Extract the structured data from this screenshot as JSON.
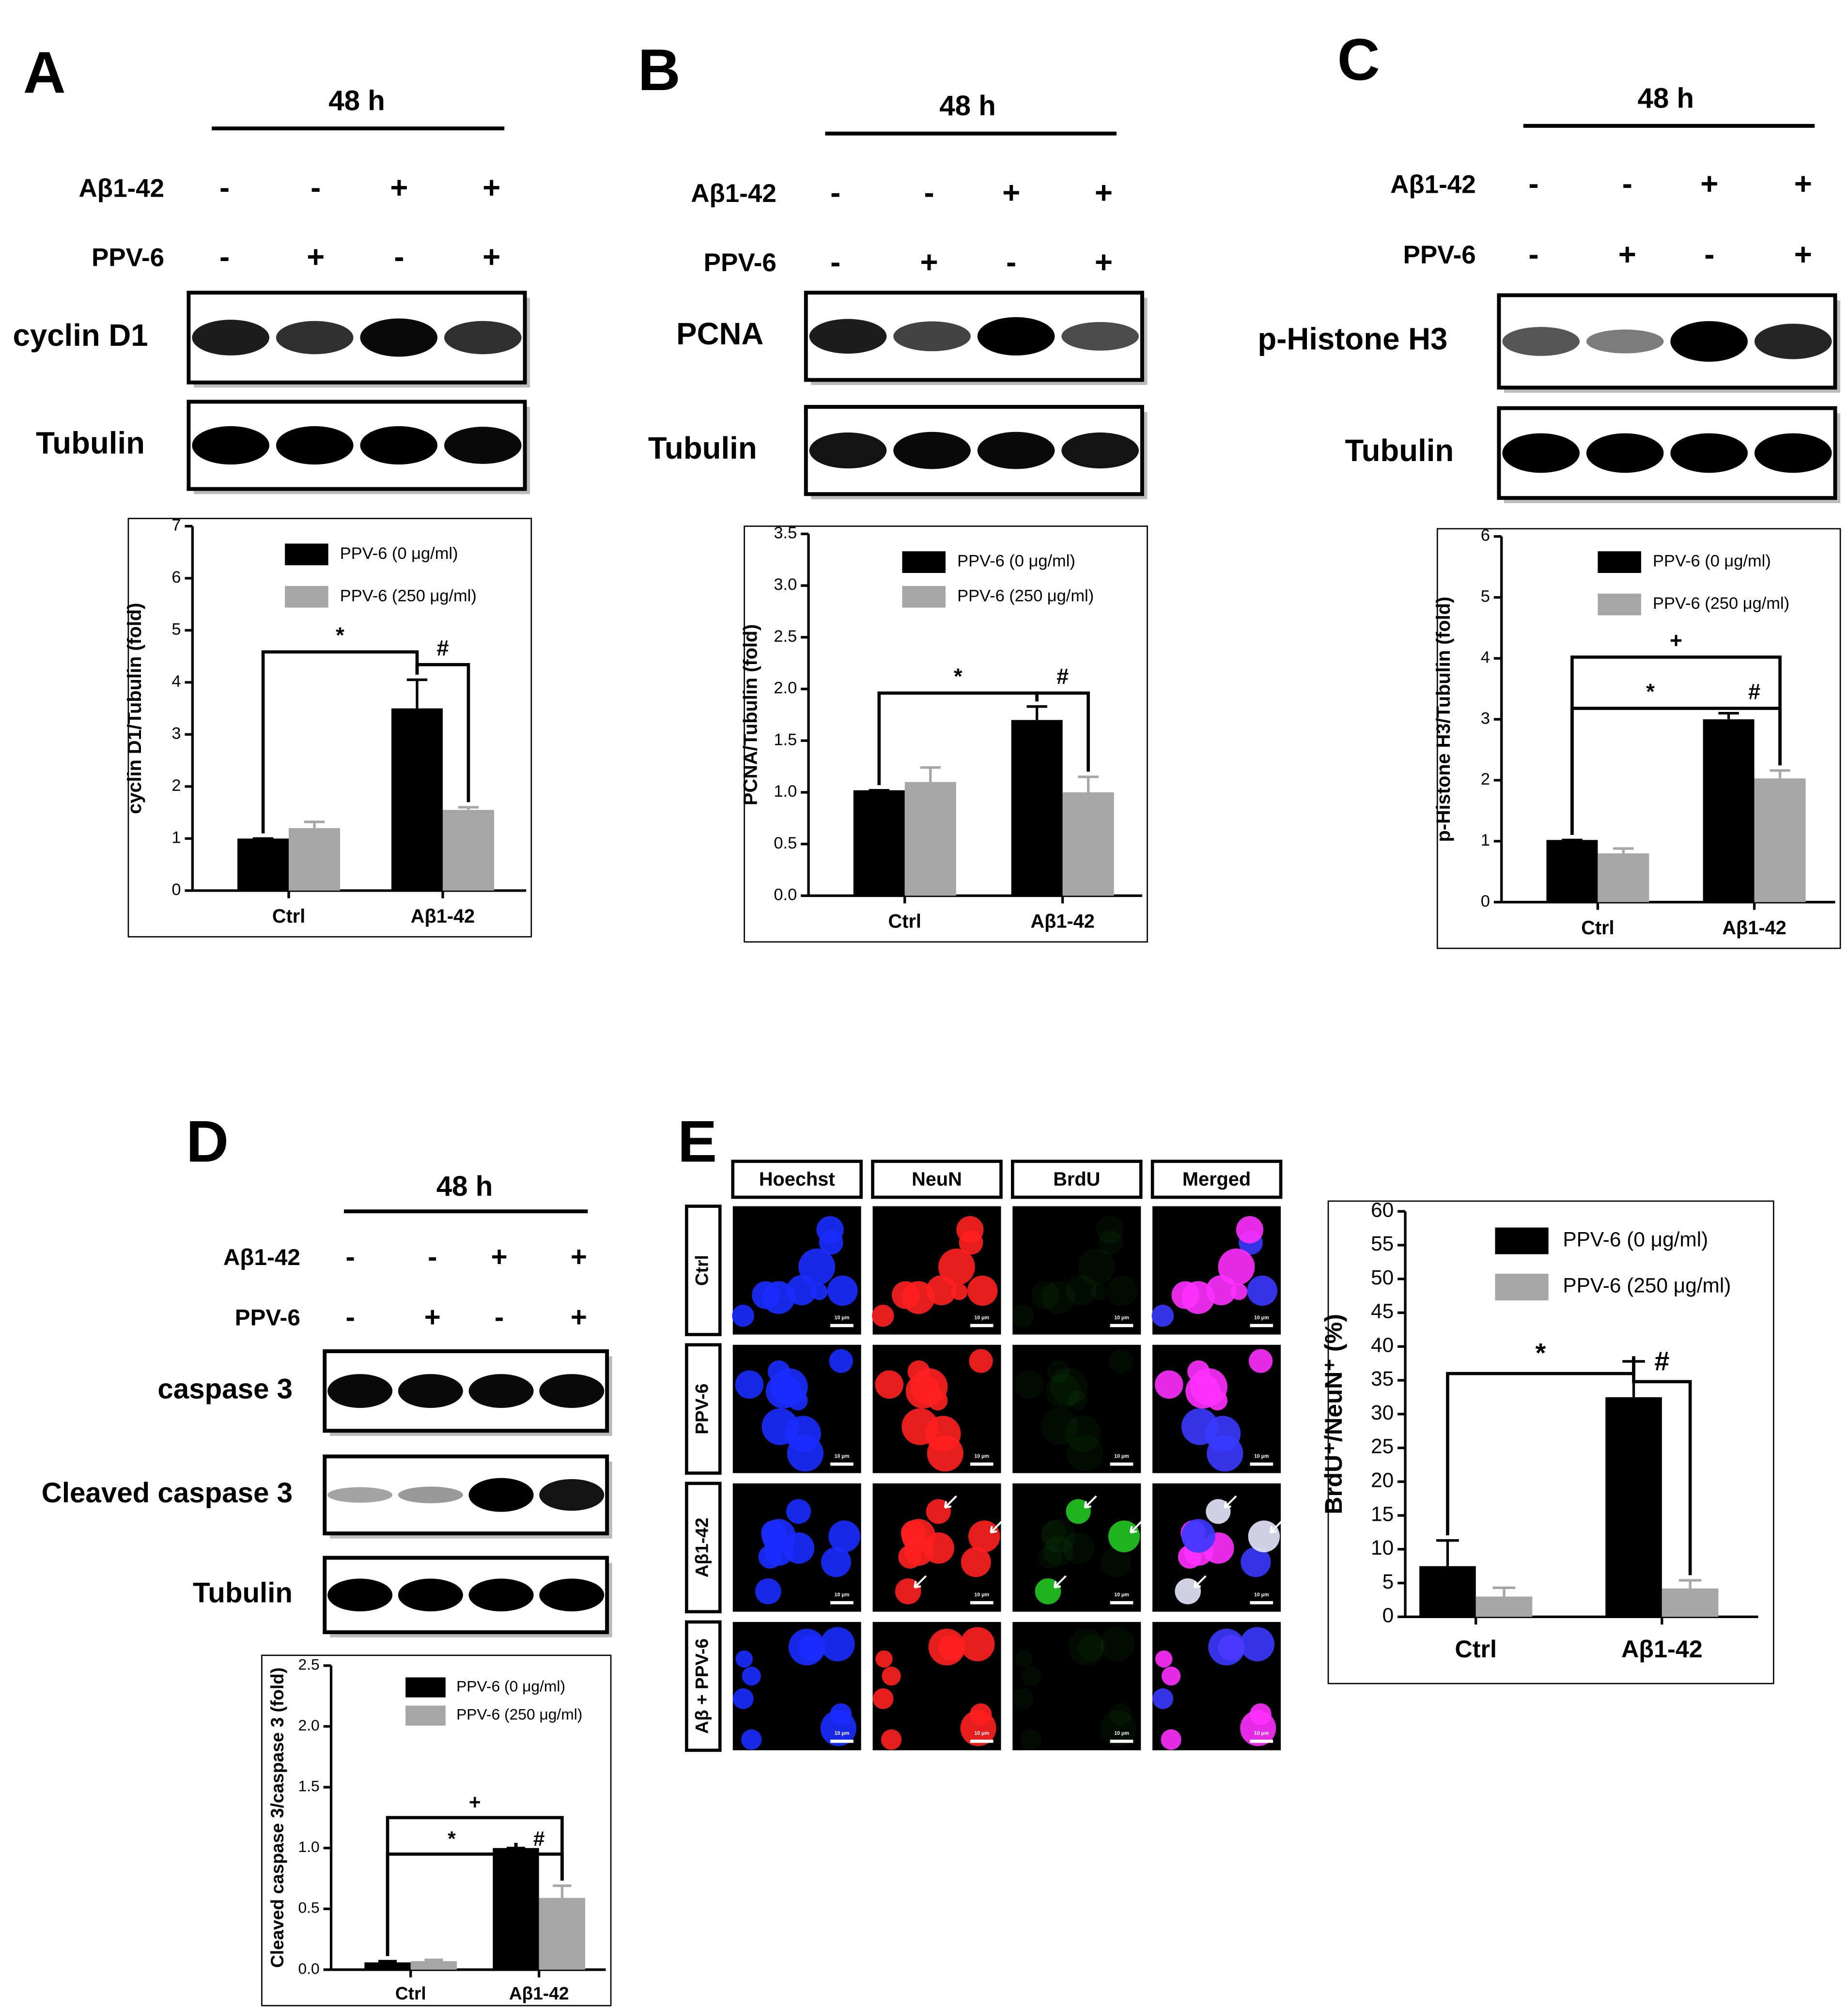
{
  "figure": {
    "panel_letters": [
      "A",
      "B",
      "C",
      "D",
      "E"
    ]
  },
  "blots": [
    {
      "time": "48 h",
      "treatments": [
        {
          "name": "Aβ1-42",
          "signs": [
            "-",
            "-",
            "+",
            "+"
          ]
        },
        {
          "name": "PPV-6",
          "signs": [
            "-",
            "+",
            "-",
            "+"
          ]
        }
      ],
      "bands": [
        "cyclin D1",
        "Tubulin"
      ]
    },
    {
      "time": "48 h",
      "treatments": [
        {
          "name": "Aβ1-42",
          "signs": [
            "-",
            "-",
            "+",
            "+"
          ]
        },
        {
          "name": "PPV-6",
          "signs": [
            "-",
            "+",
            "-",
            "+"
          ]
        }
      ],
      "bands": [
        "PCNA",
        "Tubulin"
      ]
    },
    {
      "time": "48 h",
      "treatments": [
        {
          "name": "Aβ1-42",
          "signs": [
            "-",
            "-",
            "+",
            "+"
          ]
        },
        {
          "name": "PPV-6",
          "signs": [
            "-",
            "+",
            "-",
            "+"
          ]
        }
      ],
      "bands": [
        "p-Histone H3",
        "Tubulin"
      ]
    },
    {
      "time": "48 h",
      "treatments": [
        {
          "name": "Aβ1-42",
          "signs": [
            "-",
            "-",
            "+",
            "+"
          ]
        },
        {
          "name": "PPV-6",
          "signs": [
            "-",
            "+",
            "-",
            "+"
          ]
        }
      ],
      "bands": [
        "caspase 3",
        "Cleaved caspase 3",
        "Tubulin"
      ]
    }
  ],
  "imaging": {
    "columns": [
      "Hoechst",
      "NeuN",
      "BrdU",
      "Merged"
    ],
    "rows": [
      "Ctrl",
      "PPV-6",
      "Aβ1-42",
      "Aβ + PPV-6"
    ],
    "scale_bar": "10 μm"
  },
  "chart_data": [
    {
      "type": "bar",
      "y_label": "cyclin D1/Tubulin (fold)",
      "categories": [
        "Ctrl",
        "Aβ1-42"
      ],
      "series": [
        {
          "name": "PPV-6 (0 μg/ml)",
          "color": "#000000",
          "values": [
            1.0,
            3.5
          ],
          "errors": [
            0,
            0.55
          ]
        },
        {
          "name": "PPV-6 (250 μg/ml)",
          "color": "#a6a6a6",
          "values": [
            1.2,
            1.55
          ],
          "errors": [
            0.12,
            0.05
          ]
        }
      ],
      "ylim": [
        0,
        7
      ],
      "yticks": [
        0,
        1,
        2,
        3,
        4,
        5,
        6,
        7
      ],
      "annotations": [
        "*",
        "#"
      ]
    },
    {
      "type": "bar",
      "y_label": "PCNA/Tubulin (fold)",
      "categories": [
        "Ctrl",
        "Aβ1-42"
      ],
      "series": [
        {
          "name": "PPV-6 (0 μg/ml)",
          "color": "#000000",
          "values": [
            1.02,
            1.7
          ],
          "errors": [
            0,
            0.13
          ]
        },
        {
          "name": "PPV-6 (250 μg/ml)",
          "color": "#a6a6a6",
          "values": [
            1.1,
            1.0
          ],
          "errors": [
            0.14,
            0.15
          ]
        }
      ],
      "ylim": [
        0,
        3.5
      ],
      "yticks": [
        {
          "value": 0,
          "label": "0.0"
        },
        0.5,
        {
          "value": 1,
          "label": "1.0"
        },
        1.5,
        {
          "value": 2,
          "label": "2.0"
        },
        2.5,
        {
          "value": 3,
          "label": "3.0"
        },
        3.5
      ],
      "annotations": [
        "*",
        "#"
      ]
    },
    {
      "type": "bar",
      "y_label": "p-Histone H3/Tubulin (fold)",
      "categories": [
        "Ctrl",
        "Aβ1-42"
      ],
      "series": [
        {
          "name": "PPV-6 (0 μg/ml)",
          "color": "#000000",
          "values": [
            1.02,
            3.0
          ],
          "errors": [
            0,
            0.1
          ]
        },
        {
          "name": "PPV-6 (250 μg/ml)",
          "color": "#a6a6a6",
          "values": [
            0.8,
            2.03
          ],
          "errors": [
            0.08,
            0.13
          ]
        }
      ],
      "ylim": [
        0,
        6
      ],
      "yticks": [
        0,
        1,
        2,
        3,
        4,
        5,
        6
      ],
      "annotations": [
        "+",
        "*",
        "#"
      ]
    },
    {
      "type": "bar",
      "y_label": "Cleaved caspase 3/caspase 3 (fold)",
      "categories": [
        "Ctrl",
        "Aβ1-42"
      ],
      "series": [
        {
          "name": "PPV-6 (0 μg/ml)",
          "color": "#000000",
          "values": [
            0.06,
            1.0
          ],
          "errors": [
            0.01,
            0
          ]
        },
        {
          "name": "PPV-6 (250 μg/ml)",
          "color": "#a6a6a6",
          "values": [
            0.07,
            0.59
          ],
          "errors": [
            0.01,
            0.1
          ]
        }
      ],
      "ylim": [
        0,
        2.5
      ],
      "yticks": [
        {
          "value": 0,
          "label": "0.0"
        },
        0.5,
        {
          "value": 1,
          "label": "1.0"
        },
        1.5,
        {
          "value": 2,
          "label": "2.0"
        },
        2.5
      ],
      "annotations": [
        "+",
        "*",
        "#"
      ]
    },
    {
      "type": "bar",
      "y_label": "BrdU⁺/NeuN⁺ (%)",
      "categories": [
        "Ctrl",
        "Aβ1-42"
      ],
      "series": [
        {
          "name": "PPV-6 (0 μg/ml)",
          "color": "#000000",
          "values": [
            7.5,
            32.5
          ],
          "errors": [
            3.8,
            5.3
          ]
        },
        {
          "name": "PPV-6 (250 μg/ml)",
          "color": "#a6a6a6",
          "values": [
            3.0,
            4.2
          ],
          "errors": [
            1.3,
            1.2
          ]
        }
      ],
      "ylim": [
        0,
        60
      ],
      "yticks": [
        0,
        5,
        10,
        15,
        20,
        25,
        30,
        35,
        40,
        45,
        50,
        55,
        60
      ],
      "annotations": [
        "*",
        "#"
      ]
    }
  ]
}
